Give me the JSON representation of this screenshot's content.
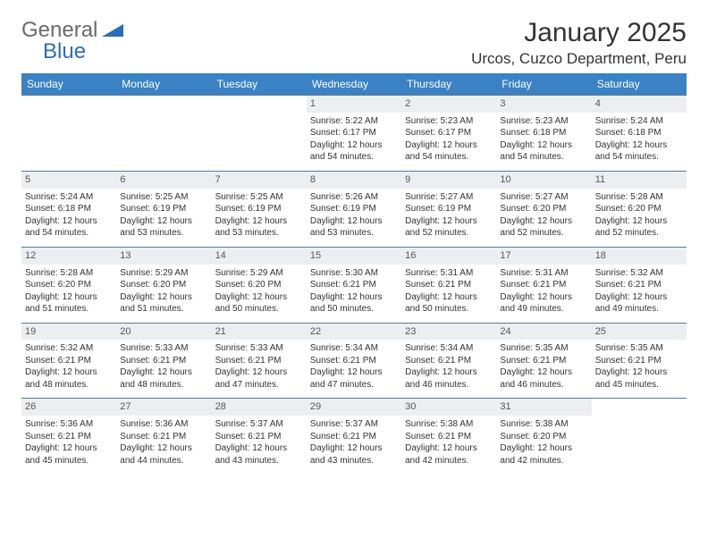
{
  "logo": {
    "text1": "General",
    "text2": "Blue"
  },
  "title": "January 2025",
  "location": "Urcos, Cuzco Department, Peru",
  "colors": {
    "header_bg": "#3a82c4",
    "header_text": "#ffffff",
    "daynum_bg": "#eceff1",
    "border": "#5a7a9a",
    "logo_gray": "#6b6b6b",
    "logo_blue": "#2a6db8"
  },
  "fonts": {
    "title_size": 30,
    "location_size": 17,
    "header_size": 12,
    "cell_size": 10,
    "daynum_size": 11
  },
  "day_names": [
    "Sunday",
    "Monday",
    "Tuesday",
    "Wednesday",
    "Thursday",
    "Friday",
    "Saturday"
  ],
  "weeks": [
    [
      {
        "n": "",
        "sr": "",
        "ss": "",
        "dl": ""
      },
      {
        "n": "",
        "sr": "",
        "ss": "",
        "dl": ""
      },
      {
        "n": "",
        "sr": "",
        "ss": "",
        "dl": ""
      },
      {
        "n": "1",
        "sr": "5:22 AM",
        "ss": "6:17 PM",
        "dl": "12 hours and 54 minutes."
      },
      {
        "n": "2",
        "sr": "5:23 AM",
        "ss": "6:17 PM",
        "dl": "12 hours and 54 minutes."
      },
      {
        "n": "3",
        "sr": "5:23 AM",
        "ss": "6:18 PM",
        "dl": "12 hours and 54 minutes."
      },
      {
        "n": "4",
        "sr": "5:24 AM",
        "ss": "6:18 PM",
        "dl": "12 hours and 54 minutes."
      }
    ],
    [
      {
        "n": "5",
        "sr": "5:24 AM",
        "ss": "6:18 PM",
        "dl": "12 hours and 54 minutes."
      },
      {
        "n": "6",
        "sr": "5:25 AM",
        "ss": "6:19 PM",
        "dl": "12 hours and 53 minutes."
      },
      {
        "n": "7",
        "sr": "5:25 AM",
        "ss": "6:19 PM",
        "dl": "12 hours and 53 minutes."
      },
      {
        "n": "8",
        "sr": "5:26 AM",
        "ss": "6:19 PM",
        "dl": "12 hours and 53 minutes."
      },
      {
        "n": "9",
        "sr": "5:27 AM",
        "ss": "6:19 PM",
        "dl": "12 hours and 52 minutes."
      },
      {
        "n": "10",
        "sr": "5:27 AM",
        "ss": "6:20 PM",
        "dl": "12 hours and 52 minutes."
      },
      {
        "n": "11",
        "sr": "5:28 AM",
        "ss": "6:20 PM",
        "dl": "12 hours and 52 minutes."
      }
    ],
    [
      {
        "n": "12",
        "sr": "5:28 AM",
        "ss": "6:20 PM",
        "dl": "12 hours and 51 minutes."
      },
      {
        "n": "13",
        "sr": "5:29 AM",
        "ss": "6:20 PM",
        "dl": "12 hours and 51 minutes."
      },
      {
        "n": "14",
        "sr": "5:29 AM",
        "ss": "6:20 PM",
        "dl": "12 hours and 50 minutes."
      },
      {
        "n": "15",
        "sr": "5:30 AM",
        "ss": "6:21 PM",
        "dl": "12 hours and 50 minutes."
      },
      {
        "n": "16",
        "sr": "5:31 AM",
        "ss": "6:21 PM",
        "dl": "12 hours and 50 minutes."
      },
      {
        "n": "17",
        "sr": "5:31 AM",
        "ss": "6:21 PM",
        "dl": "12 hours and 49 minutes."
      },
      {
        "n": "18",
        "sr": "5:32 AM",
        "ss": "6:21 PM",
        "dl": "12 hours and 49 minutes."
      }
    ],
    [
      {
        "n": "19",
        "sr": "5:32 AM",
        "ss": "6:21 PM",
        "dl": "12 hours and 48 minutes."
      },
      {
        "n": "20",
        "sr": "5:33 AM",
        "ss": "6:21 PM",
        "dl": "12 hours and 48 minutes."
      },
      {
        "n": "21",
        "sr": "5:33 AM",
        "ss": "6:21 PM",
        "dl": "12 hours and 47 minutes."
      },
      {
        "n": "22",
        "sr": "5:34 AM",
        "ss": "6:21 PM",
        "dl": "12 hours and 47 minutes."
      },
      {
        "n": "23",
        "sr": "5:34 AM",
        "ss": "6:21 PM",
        "dl": "12 hours and 46 minutes."
      },
      {
        "n": "24",
        "sr": "5:35 AM",
        "ss": "6:21 PM",
        "dl": "12 hours and 46 minutes."
      },
      {
        "n": "25",
        "sr": "5:35 AM",
        "ss": "6:21 PM",
        "dl": "12 hours and 45 minutes."
      }
    ],
    [
      {
        "n": "26",
        "sr": "5:36 AM",
        "ss": "6:21 PM",
        "dl": "12 hours and 45 minutes."
      },
      {
        "n": "27",
        "sr": "5:36 AM",
        "ss": "6:21 PM",
        "dl": "12 hours and 44 minutes."
      },
      {
        "n": "28",
        "sr": "5:37 AM",
        "ss": "6:21 PM",
        "dl": "12 hours and 43 minutes."
      },
      {
        "n": "29",
        "sr": "5:37 AM",
        "ss": "6:21 PM",
        "dl": "12 hours and 43 minutes."
      },
      {
        "n": "30",
        "sr": "5:38 AM",
        "ss": "6:21 PM",
        "dl": "12 hours and 42 minutes."
      },
      {
        "n": "31",
        "sr": "5:38 AM",
        "ss": "6:20 PM",
        "dl": "12 hours and 42 minutes."
      },
      {
        "n": "",
        "sr": "",
        "ss": "",
        "dl": ""
      }
    ]
  ],
  "labels": {
    "sunrise": "Sunrise:",
    "sunset": "Sunset:",
    "daylight": "Daylight:"
  }
}
